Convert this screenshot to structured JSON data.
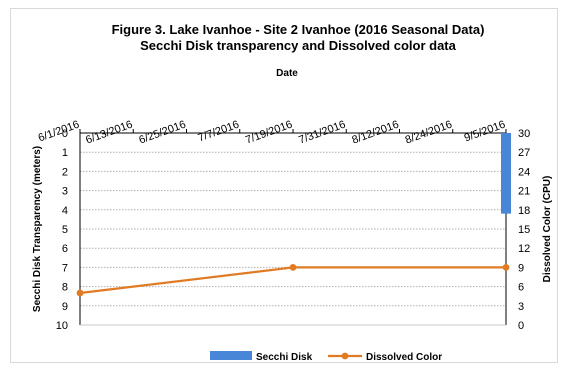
{
  "chart_data": {
    "type": "bar+line",
    "title_line1": "Figure 3. Lake Ivanhoe - Site 2 Ivanhoe (2016 Seasonal Data)",
    "title_line2": "Secchi Disk transparency and Dissolved color data",
    "xlabel": "Date",
    "ylabel_left": "Secchi Disk Transparency (meters)",
    "ylabel_right": "Dissolved Color (CPU)",
    "x_ticks": [
      "6/1/2016",
      "6/13/2016",
      "6/25/2016",
      "7/7/2016",
      "7/19/2016",
      "7/31/2016",
      "8/12/2016",
      "8/24/2016",
      "9/5/2016"
    ],
    "x_range_days": [
      0,
      96
    ],
    "y_left_ticks": [
      "0",
      "1",
      "2",
      "3",
      "4",
      "5",
      "6",
      "7",
      "8",
      "9",
      "10"
    ],
    "y_left_range": [
      0,
      10
    ],
    "y_left_reversed": true,
    "y_right_ticks": [
      "30",
      "27",
      "24",
      "21",
      "18",
      "15",
      "12",
      "9",
      "6",
      "3",
      "0"
    ],
    "y_right_range": [
      0,
      30
    ],
    "grid": true,
    "legend_position": "bottom",
    "series": [
      {
        "name": "Secchi Disk",
        "kind": "bar",
        "axis": "left",
        "color": "#4a86d8",
        "points": [
          {
            "x": "9/5/2016",
            "y": 4.2
          }
        ]
      },
      {
        "name": "Dissolved Color",
        "kind": "line",
        "axis": "right",
        "color": "#e07b24",
        "points": [
          {
            "x": "6/1/2016",
            "y": 5
          },
          {
            "x": "7/19/2016",
            "y": 9
          },
          {
            "x": "9/5/2016",
            "y": 9
          }
        ]
      }
    ]
  }
}
